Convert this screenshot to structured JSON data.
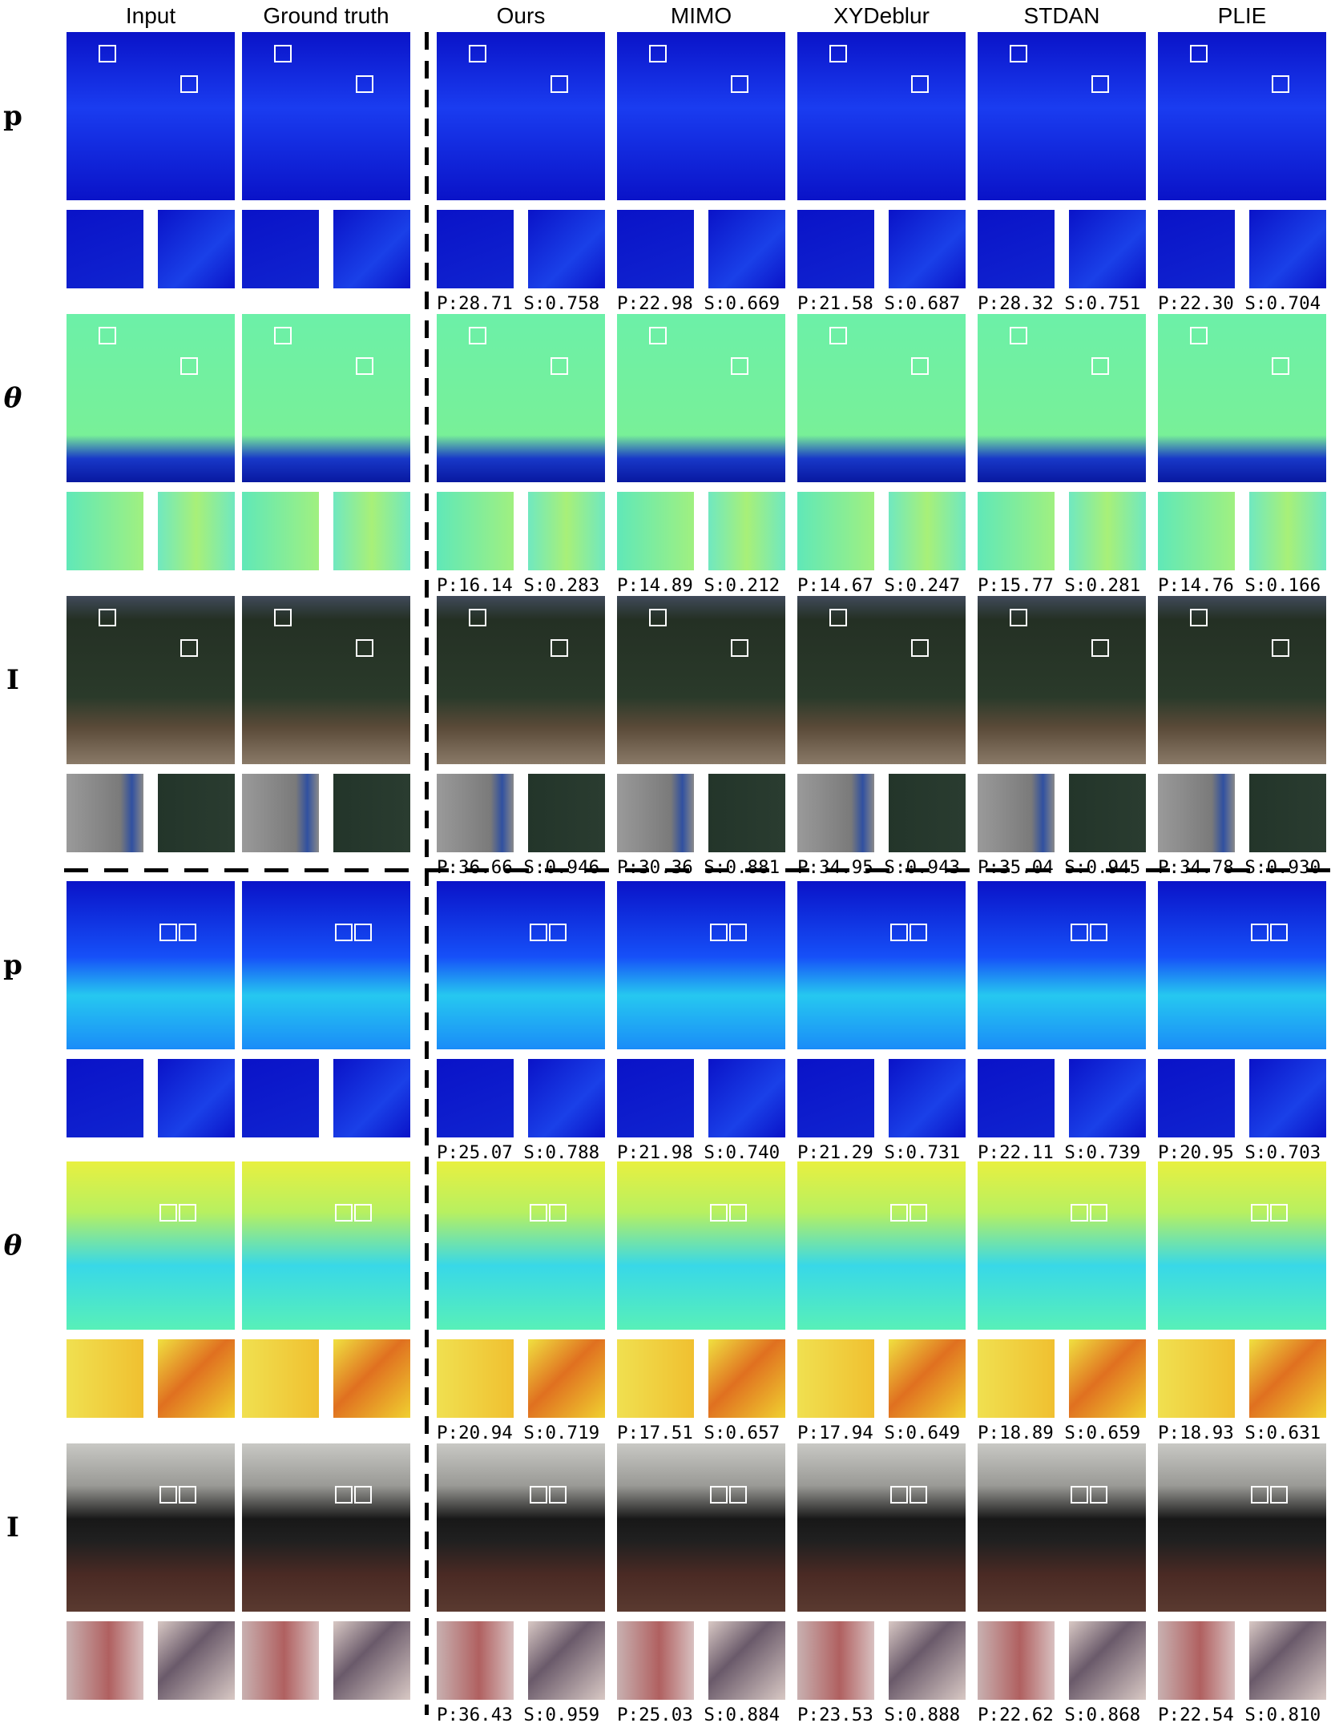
{
  "columns": [
    "Input",
    "Ground truth",
    "Ours",
    "MIMO",
    "XYDeblur",
    "STDAN",
    "PLIE"
  ],
  "row_labels": [
    "p",
    "θ",
    "I",
    "p",
    "θ",
    "I"
  ],
  "metrics": [
    [
      null,
      null,
      "P:28.71 S:0.758",
      "P:22.98 S:0.669",
      "P:21.58 S:0.687",
      "P:28.32 S:0.751",
      "P:22.30 S:0.704"
    ],
    [
      null,
      null,
      "P:16.14 S:0.283",
      "P:14.89 S:0.212",
      "P:14.67 S:0.247",
      "P:15.77 S:0.281",
      "P:14.76 S:0.166"
    ],
    [
      null,
      null,
      "P:36.66 S:0.946",
      "P:30.36 S:0.881",
      "P:34.95 S:0.943",
      "P:35.04 S:0.945",
      "P:34.78 S:0.930"
    ],
    [
      null,
      null,
      "P:25.07 S:0.788",
      "P:21.98 S:0.740",
      "P:21.29 S:0.731",
      "P:22.11 S:0.739",
      "P:20.95 S:0.703"
    ],
    [
      null,
      null,
      "P:20.94 S:0.719",
      "P:17.51 S:0.657",
      "P:17.94 S:0.649",
      "P:18.89 S:0.659",
      "P:18.93 S:0.631"
    ],
    [
      null,
      null,
      "P:36.43 S:0.959",
      "P:25.03 S:0.884",
      "P:23.53 S:0.888",
      "P:22.62 S:0.868",
      "P:22.54 S:0.810"
    ]
  ],
  "row_types": [
    "p",
    "theta",
    "intensity",
    "p",
    "theta",
    "intensity"
  ],
  "colors": {
    "p_blue_dark": "#0a13c8",
    "p_blue": "#1a3cf0",
    "theta_green": "#6cf0a8",
    "theta_cyan": "#38d8e8",
    "theta_yellow": "#e8f040",
    "intensity_dark_green": "#243024",
    "intensity_floor": "#5a4a38",
    "room_wall": "#c8c8c4",
    "room_table": "#4a2a24"
  }
}
